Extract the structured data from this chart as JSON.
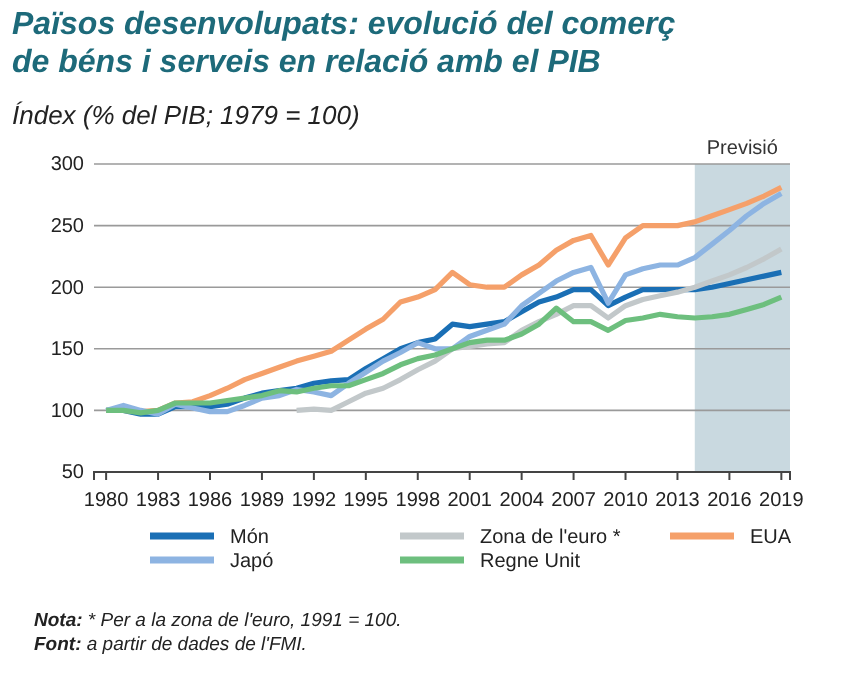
{
  "chart_data": {
    "type": "line",
    "title": "Països desenvolupats: evolució del comerç de béns i serveis en relació amb el PIB",
    "ylabel": "Índex (% del PIB; 1979 = 100)",
    "x": [
      1980,
      1981,
      1982,
      1983,
      1984,
      1985,
      1986,
      1987,
      1988,
      1989,
      1990,
      1991,
      1992,
      1993,
      1994,
      1995,
      1996,
      1997,
      1998,
      1999,
      2000,
      2001,
      2002,
      2003,
      2004,
      2005,
      2006,
      2007,
      2008,
      2009,
      2010,
      2011,
      2012,
      2013,
      2014,
      2015,
      2016,
      2017,
      2018,
      2019
    ],
    "series": [
      {
        "name": "Món",
        "color": "#1a6fb5",
        "values": [
          100,
          100,
          97,
          97,
          103,
          103,
          103,
          105,
          110,
          114,
          116,
          118,
          122,
          124,
          125,
          134,
          142,
          150,
          155,
          158,
          170,
          168,
          170,
          172,
          180,
          188,
          192,
          198,
          198,
          185,
          192,
          198,
          198,
          198,
          198,
          200,
          203,
          206,
          209,
          212
        ]
      },
      {
        "name": "Zona de l'euro *",
        "color": "#c2c8ca",
        "values": [
          null,
          null,
          null,
          null,
          null,
          null,
          null,
          null,
          null,
          null,
          null,
          100,
          101,
          100,
          107,
          114,
          118,
          125,
          133,
          140,
          150,
          152,
          154,
          155,
          165,
          172,
          178,
          185,
          185,
          175,
          185,
          190,
          193,
          196,
          200,
          205,
          210,
          216,
          223,
          231
        ]
      },
      {
        "name": "EUA",
        "color": "#f5a06a",
        "values": [
          100,
          100,
          99,
          100,
          106,
          107,
          112,
          118,
          125,
          130,
          135,
          140,
          144,
          148,
          157,
          166,
          174,
          188,
          192,
          198,
          212,
          202,
          200,
          200,
          210,
          218,
          230,
          238,
          242,
          218,
          240,
          250,
          250,
          250,
          253,
          258,
          263,
          268,
          274,
          281
        ]
      },
      {
        "name": "Japó",
        "color": "#8db4e2",
        "values": [
          100,
          104,
          100,
          97,
          105,
          102,
          99,
          99,
          104,
          110,
          112,
          117,
          115,
          112,
          122,
          131,
          140,
          147,
          155,
          150,
          150,
          160,
          165,
          170,
          185,
          195,
          205,
          212,
          216,
          187,
          210,
          215,
          218,
          218,
          224,
          235,
          246,
          258,
          268,
          276
        ]
      },
      {
        "name": "Regne Unit",
        "color": "#6dbf7e",
        "values": [
          100,
          100,
          98,
          100,
          106,
          106,
          106,
          108,
          110,
          112,
          116,
          115,
          118,
          120,
          120,
          125,
          130,
          137,
          142,
          145,
          150,
          155,
          157,
          157,
          162,
          170,
          183,
          172,
          172,
          165,
          173,
          175,
          178,
          176,
          175,
          176,
          178,
          182,
          186,
          192
        ]
      }
    ],
    "xlim": [
      1979.3,
      2019.5
    ],
    "xticks": [
      1980,
      1983,
      1986,
      1989,
      1992,
      1995,
      1998,
      2001,
      2004,
      2007,
      2010,
      2013,
      2016,
      2019
    ],
    "ylim": [
      50,
      300
    ],
    "yticks": [
      50,
      100,
      150,
      200,
      250,
      300
    ],
    "grid": "y",
    "legend": "bottom",
    "line_style": "solid",
    "marker": "none",
    "bands": [
      {
        "axis": "x",
        "from": 2014,
        "to": 2019.5,
        "label": "Previsió",
        "color": "#c9d9e0"
      }
    ],
    "annotations": [
      "Nota: * Per a la zona de l'euro, 1991 = 100.",
      "Font: a partir de dades de l'FMI."
    ]
  }
}
